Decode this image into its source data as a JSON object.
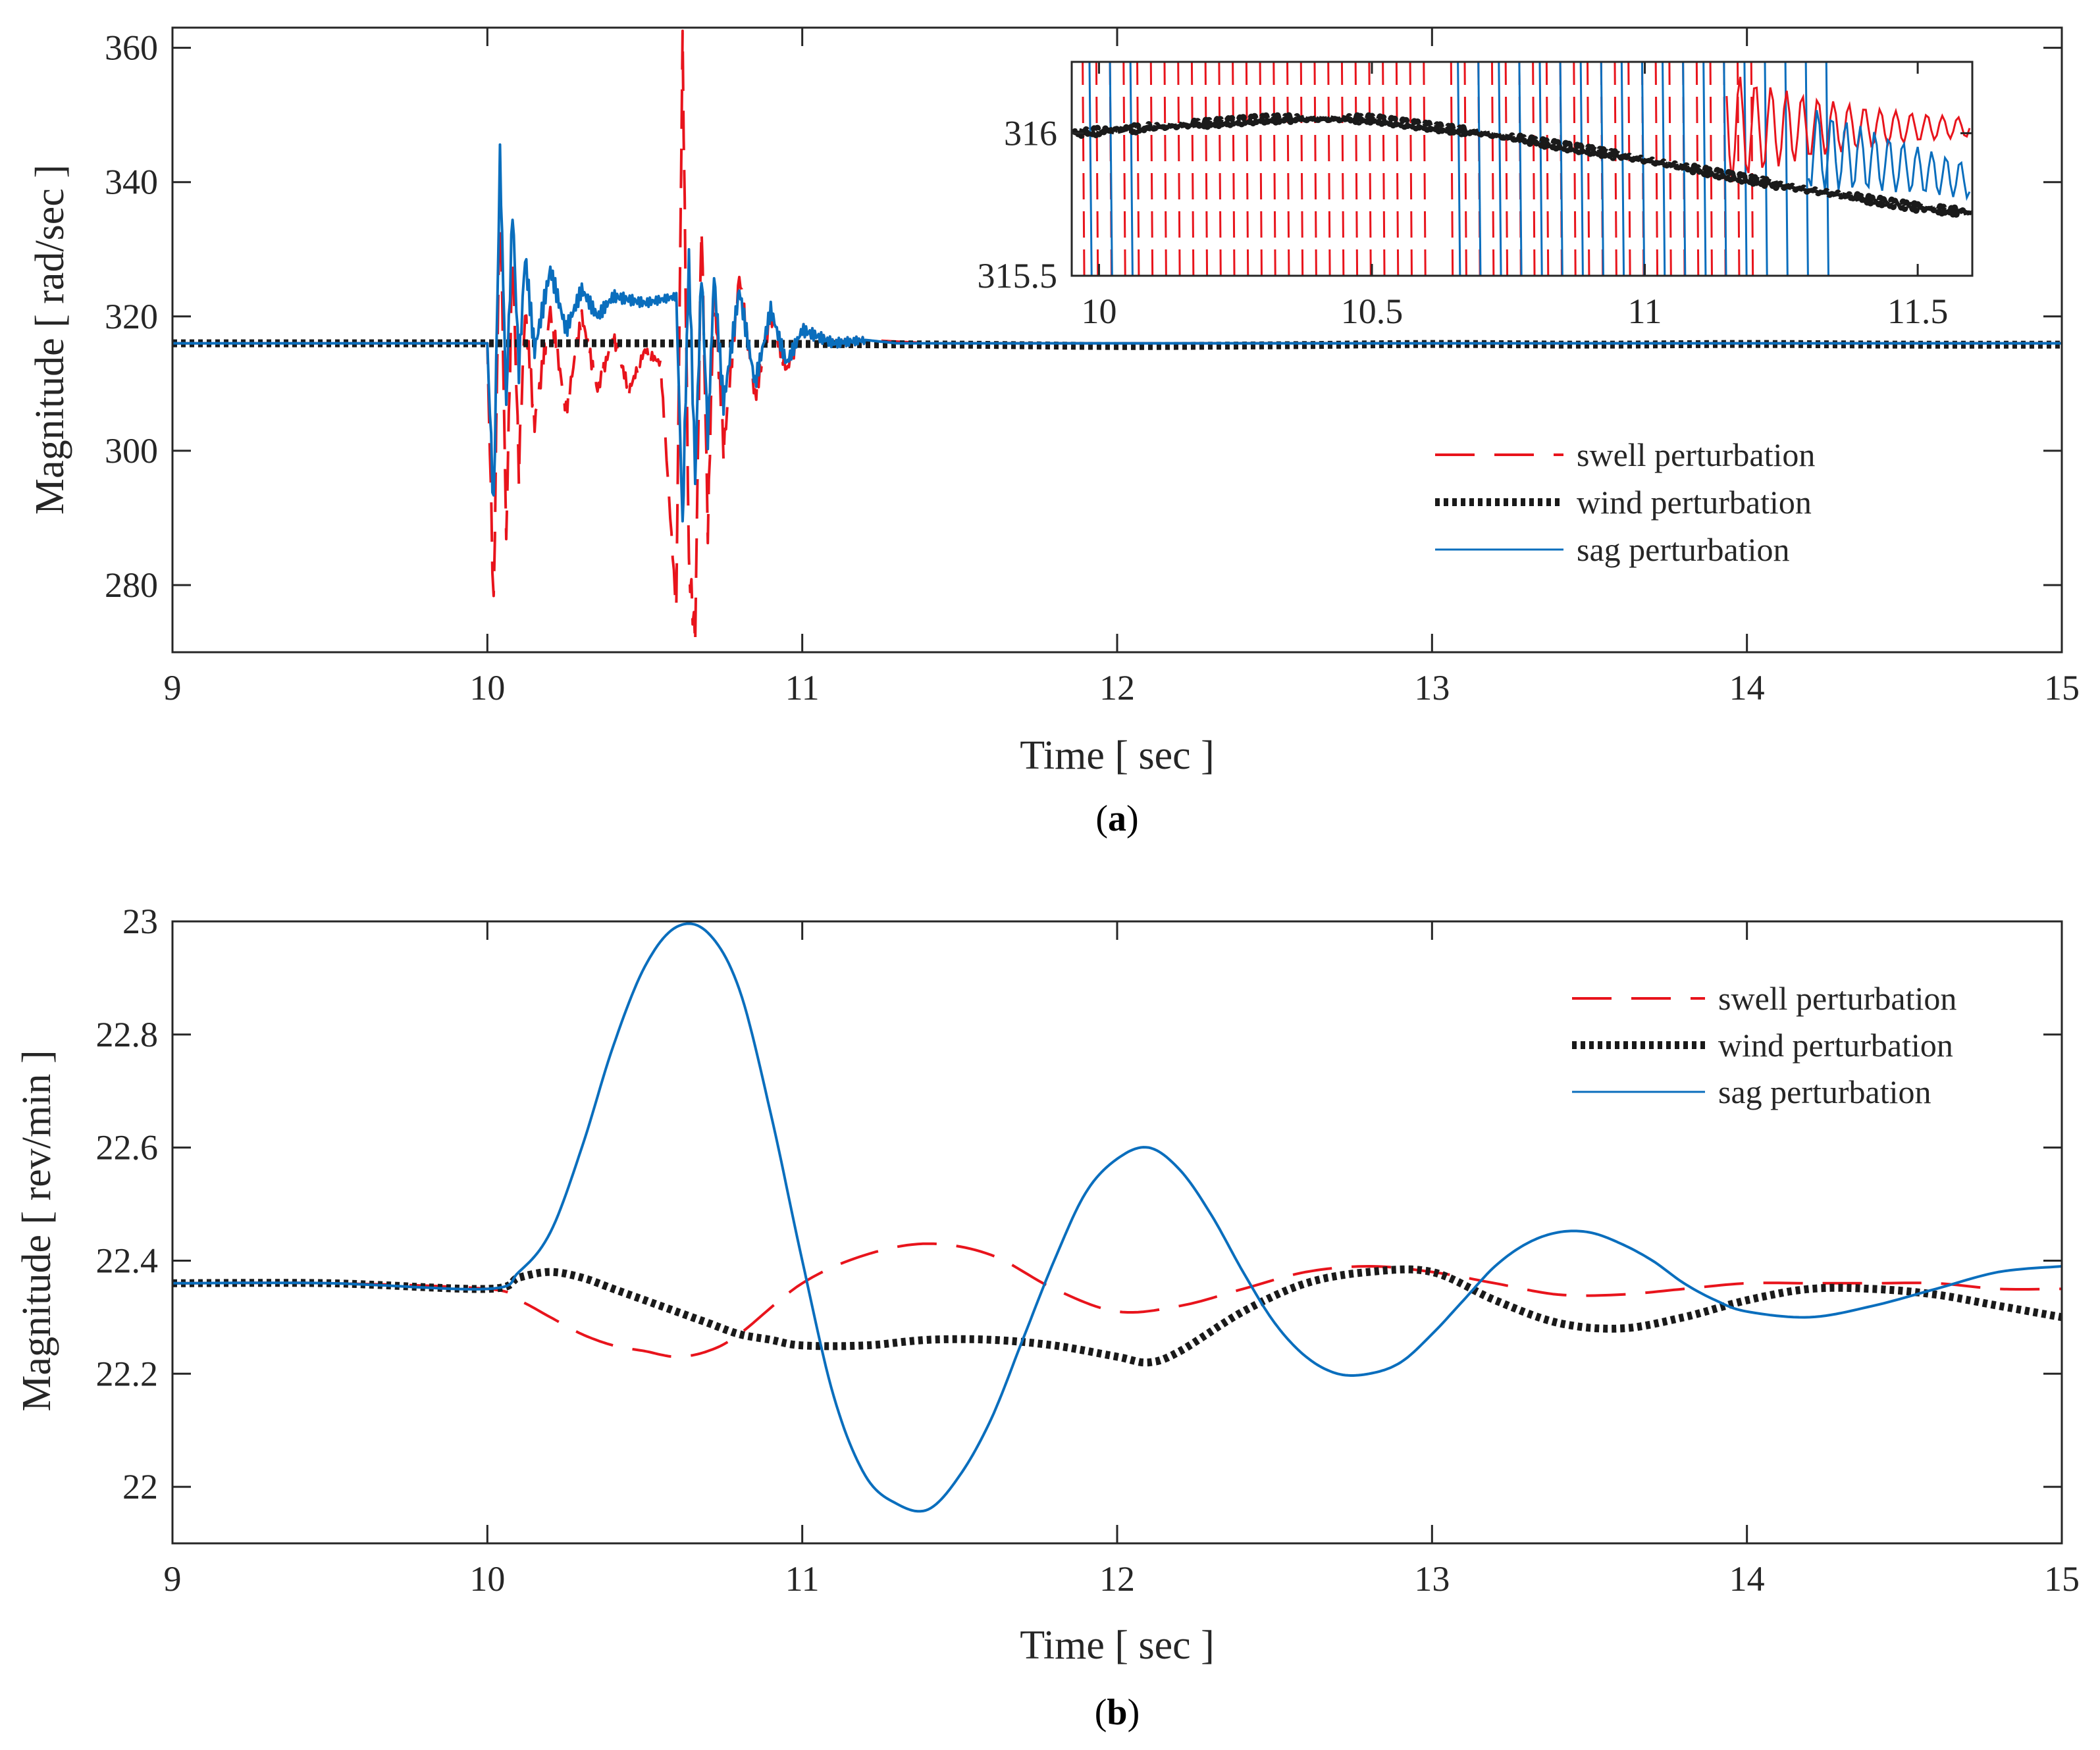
{
  "colors": {
    "swell": "#e8141c",
    "wind": "#1a1a1a",
    "sag": "#0a6ebd",
    "axis": "#262626"
  },
  "chart_data": [
    {
      "id": "a",
      "type": "line",
      "caption_letter": "a",
      "xlabel": "Time  [ sec ]",
      "ylabel": "Magnitude  [ rad/sec ]",
      "xlim": [
        9,
        15
      ],
      "ylim": [
        270,
        363
      ],
      "xticks": [
        "9",
        "10",
        "11",
        "12",
        "13",
        "14",
        "15"
      ],
      "yticks": [
        "280",
        "300",
        "320",
        "340",
        "360"
      ],
      "legend": {
        "position": "center-right",
        "entries": [
          "swell perturbation",
          "wind perturbation",
          "sag perturbation"
        ]
      },
      "series": [
        {
          "name": "swell perturbation",
          "style": "dashed",
          "x": [
            9,
            10,
            10.02,
            10.04,
            10.06,
            10.08,
            10.1,
            10.12,
            10.15,
            10.2,
            10.25,
            10.3,
            10.35,
            10.4,
            10.45,
            10.5,
            10.55,
            10.6,
            10.62,
            10.64,
            10.66,
            10.68,
            10.7,
            10.72,
            10.75,
            10.8,
            10.85,
            10.9,
            10.95,
            11.0,
            11.1,
            11.2,
            11.4,
            15
          ],
          "y": [
            316,
            316,
            276,
            341,
            287,
            330,
            297,
            321,
            304,
            321,
            306,
            320,
            309,
            317,
            309,
            315,
            313,
            276,
            362,
            283,
            272,
            335,
            288,
            325,
            300,
            326,
            308,
            320,
            312,
            318,
            316,
            316.5,
            316,
            316
          ]
        },
        {
          "name": "wind perturbation",
          "style": "dotted",
          "x": [
            9,
            10,
            10.5,
            11,
            11.5,
            12,
            12.5,
            13,
            13.5,
            14,
            14.5,
            15
          ],
          "y": [
            316,
            316.0,
            316.0,
            315.9,
            315.8,
            315.6,
            315.7,
            315.9,
            315.8,
            315.9,
            315.8,
            315.8
          ]
        },
        {
          "name": "sag perturbation",
          "style": "solid",
          "x": [
            9,
            10,
            10.02,
            10.04,
            10.06,
            10.08,
            10.1,
            10.12,
            10.15,
            10.2,
            10.25,
            10.3,
            10.35,
            10.4,
            10.5,
            10.6,
            10.62,
            10.64,
            10.66,
            10.68,
            10.7,
            10.72,
            10.75,
            10.8,
            10.85,
            10.9,
            10.95,
            11.0,
            11.1,
            11.2,
            11.3,
            15
          ],
          "y": [
            316,
            316,
            291,
            344,
            307,
            336,
            312,
            329,
            315,
            327,
            318,
            324,
            320,
            323,
            322,
            323,
            289,
            329,
            296,
            327,
            302,
            326,
            307,
            324,
            310,
            321,
            313,
            318,
            316,
            316.5,
            316,
            316
          ]
        }
      ]
    },
    {
      "id": "a-inset",
      "type": "line",
      "xlim": [
        9.95,
        11.6
      ],
      "ylim": [
        315.5,
        316.25
      ],
      "xticks": [
        "10",
        "10.5",
        "11",
        "11.5"
      ],
      "yticks": [
        "315.5",
        "316"
      ],
      "series": [
        {
          "name": "wind perturbation",
          "x": [
            9.95,
            10.1,
            10.3,
            10.5,
            10.7,
            10.9,
            11.1,
            11.3,
            11.5,
            11.6
          ],
          "y": [
            316.0,
            316.02,
            316.05,
            316.05,
            316.0,
            315.94,
            315.87,
            315.8,
            315.74,
            315.72
          ]
        }
      ]
    },
    {
      "id": "b",
      "type": "line",
      "caption_letter": "b",
      "xlabel": "Time  [ sec ]",
      "ylabel": "Magnitude  [ rev/min ]",
      "xlim": [
        9,
        15
      ],
      "ylim": [
        21.9,
        23.0
      ],
      "xticks": [
        "9",
        "10",
        "11",
        "12",
        "13",
        "14",
        "15"
      ],
      "yticks": [
        "22",
        "22.2",
        "22.4",
        "22.6",
        "22.8",
        "23"
      ],
      "legend": {
        "position": "top-right",
        "entries": [
          "swell perturbation",
          "wind perturbation",
          "sag perturbation"
        ]
      },
      "series": [
        {
          "name": "swell perturbation",
          "style": "dashed",
          "x": [
            9,
            9.5,
            10,
            10.1,
            10.2,
            10.3,
            10.4,
            10.5,
            10.6,
            10.7,
            10.8,
            11.0,
            11.2,
            11.4,
            11.6,
            11.8,
            12.0,
            12.2,
            12.4,
            12.6,
            12.8,
            13.0,
            13.2,
            13.4,
            13.6,
            13.8,
            14.0,
            14.2,
            14.4,
            14.6,
            14.8,
            15
          ],
          "y": [
            22.36,
            22.36,
            22.35,
            22.33,
            22.3,
            22.27,
            22.25,
            22.24,
            22.23,
            22.24,
            22.27,
            22.36,
            22.41,
            22.43,
            22.41,
            22.35,
            22.31,
            22.32,
            22.35,
            22.38,
            22.39,
            22.38,
            22.36,
            22.34,
            22.34,
            22.35,
            22.36,
            22.36,
            22.36,
            22.36,
            22.35,
            22.35
          ]
        },
        {
          "name": "wind perturbation",
          "style": "dotted",
          "x": [
            9,
            9.5,
            10,
            10.1,
            10.2,
            10.3,
            10.4,
            10.5,
            10.6,
            10.7,
            10.8,
            10.9,
            11.0,
            11.2,
            11.4,
            11.6,
            11.8,
            12.0,
            12.1,
            12.2,
            12.4,
            12.6,
            12.8,
            13.0,
            13.2,
            13.4,
            13.6,
            13.8,
            14.0,
            14.2,
            14.4,
            14.6,
            14.8,
            15
          ],
          "y": [
            22.36,
            22.36,
            22.35,
            22.37,
            22.38,
            22.37,
            22.35,
            22.33,
            22.31,
            22.29,
            22.27,
            22.26,
            22.25,
            22.25,
            22.26,
            22.26,
            22.25,
            22.23,
            22.22,
            22.24,
            22.31,
            22.36,
            22.38,
            22.38,
            22.33,
            22.29,
            22.28,
            22.3,
            22.33,
            22.35,
            22.35,
            22.34,
            22.32,
            22.3
          ]
        },
        {
          "name": "sag perturbation",
          "style": "solid",
          "x": [
            9,
            9.5,
            10,
            10.1,
            10.2,
            10.3,
            10.4,
            10.5,
            10.6,
            10.7,
            10.8,
            10.9,
            11.0,
            11.1,
            11.2,
            11.3,
            11.4,
            11.5,
            11.6,
            11.7,
            11.8,
            11.9,
            12.0,
            12.1,
            12.2,
            12.3,
            12.4,
            12.5,
            12.6,
            12.7,
            12.8,
            12.9,
            13.0,
            13.1,
            13.2,
            13.3,
            13.4,
            13.5,
            13.6,
            13.7,
            13.8,
            13.9,
            14.0,
            14.2,
            14.4,
            14.6,
            14.8,
            15
          ],
          "y": [
            22.36,
            22.36,
            22.35,
            22.38,
            22.45,
            22.6,
            22.78,
            22.92,
            22.99,
            22.98,
            22.88,
            22.66,
            22.4,
            22.16,
            22.02,
            21.97,
            21.96,
            22.02,
            22.12,
            22.26,
            22.4,
            22.52,
            22.58,
            22.6,
            22.56,
            22.48,
            22.38,
            22.29,
            22.23,
            22.2,
            22.2,
            22.22,
            22.27,
            22.33,
            22.39,
            22.43,
            22.45,
            22.45,
            22.43,
            22.4,
            22.36,
            22.33,
            22.31,
            22.3,
            22.32,
            22.35,
            22.38,
            22.39
          ]
        }
      ]
    }
  ]
}
